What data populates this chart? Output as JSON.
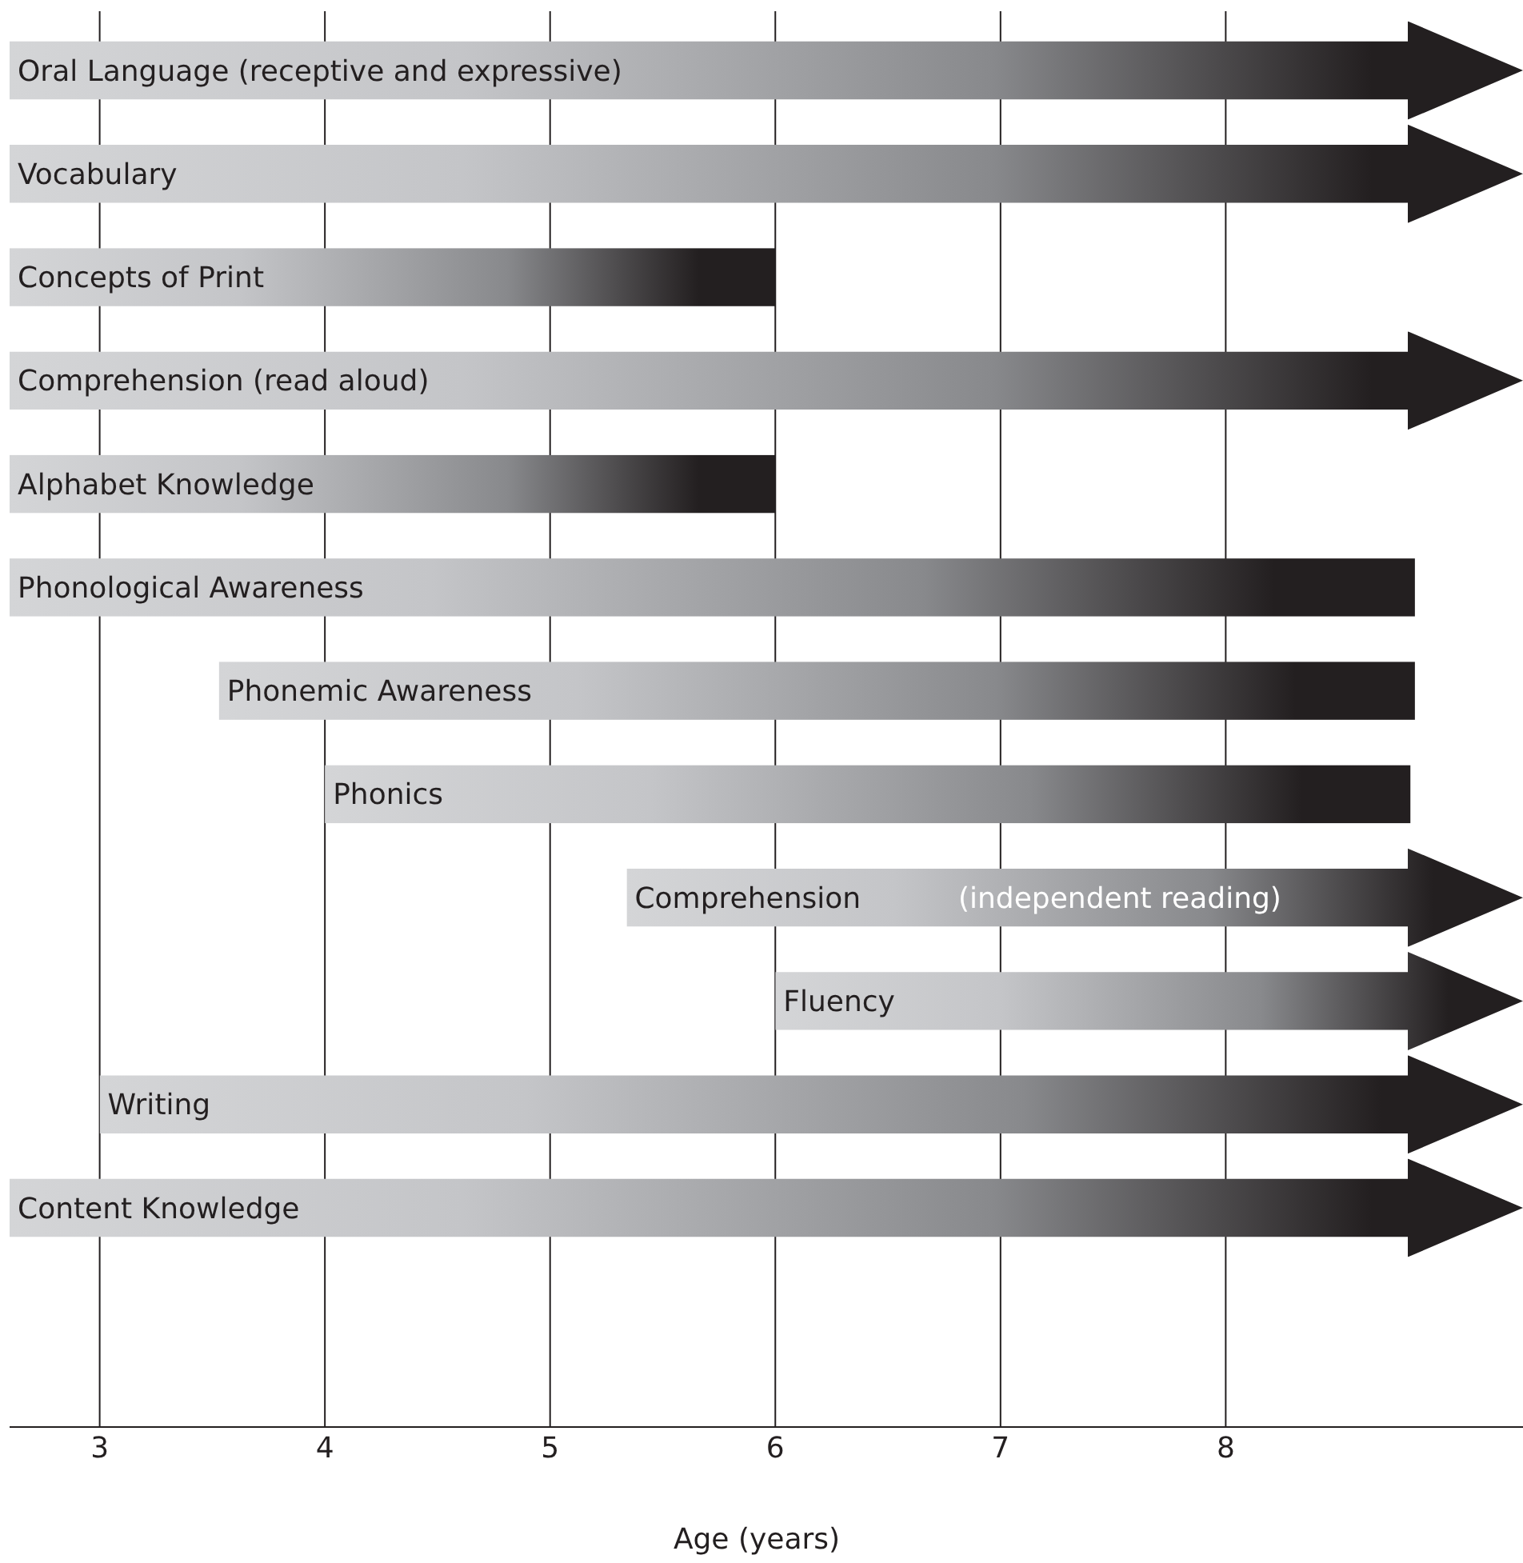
{
  "chart_data": {
    "type": "bar",
    "orientation": "horizontal",
    "xlabel": "Age (years)",
    "categories": [
      "Oral Language (receptive and expressive)",
      "Vocabulary",
      "Concepts of Print",
      "Comprehension (read aloud)",
      "Alphabet Knowledge",
      "Phonological Awareness",
      "Phonemic Awareness",
      "Phonics",
      "Comprehension",
      "Fluency",
      "Writing",
      "Content Knowledge"
    ],
    "base": [
      2.6,
      2.6,
      2.6,
      2.6,
      2.6,
      2.6,
      3.53,
      4.0,
      5.34,
      6.0,
      3.0,
      2.6
    ],
    "values": [
      6.72,
      6.72,
      3.4,
      6.72,
      3.4,
      6.24,
      5.31,
      4.82,
      3.98,
      3.32,
      6.32,
      6.72
    ],
    "color": "#231f20",
    "xlim": [
      2.6,
      9.32
    ],
    "xticks": [
      3,
      4,
      5,
      6,
      7,
      8
    ],
    "grid": "x",
    "annotations": [
      "(independent reading)"
    ]
  }
}
